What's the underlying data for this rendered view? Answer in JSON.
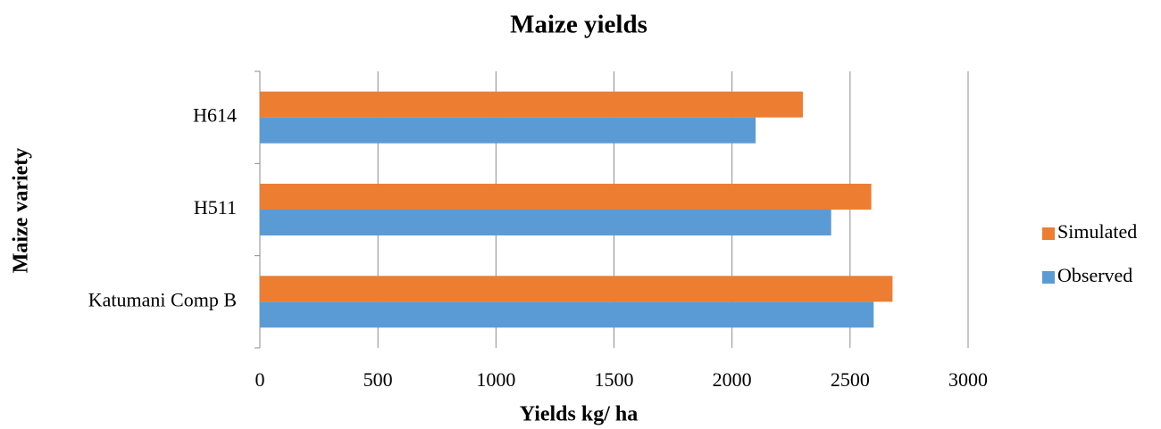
{
  "chart_data": {
    "type": "bar",
    "orientation": "horizontal",
    "title": "Maize yields",
    "x_label": "Yields kg/ ha",
    "y_label": "Maize variety",
    "categories": [
      "Katumani Comp B",
      "H511",
      "H614"
    ],
    "series": [
      {
        "name": "Observed",
        "color": "#5b9bd5",
        "values": [
          2600,
          2420,
          2100
        ]
      },
      {
        "name": "Simulated",
        "color": "#ed7d31",
        "values": [
          2680,
          2590,
          2300
        ]
      }
    ],
    "xlim": [
      0,
      3000
    ],
    "xticks": [
      0,
      500,
      1000,
      1500,
      2000,
      2500,
      3000
    ],
    "grid": true,
    "legend": "right"
  }
}
